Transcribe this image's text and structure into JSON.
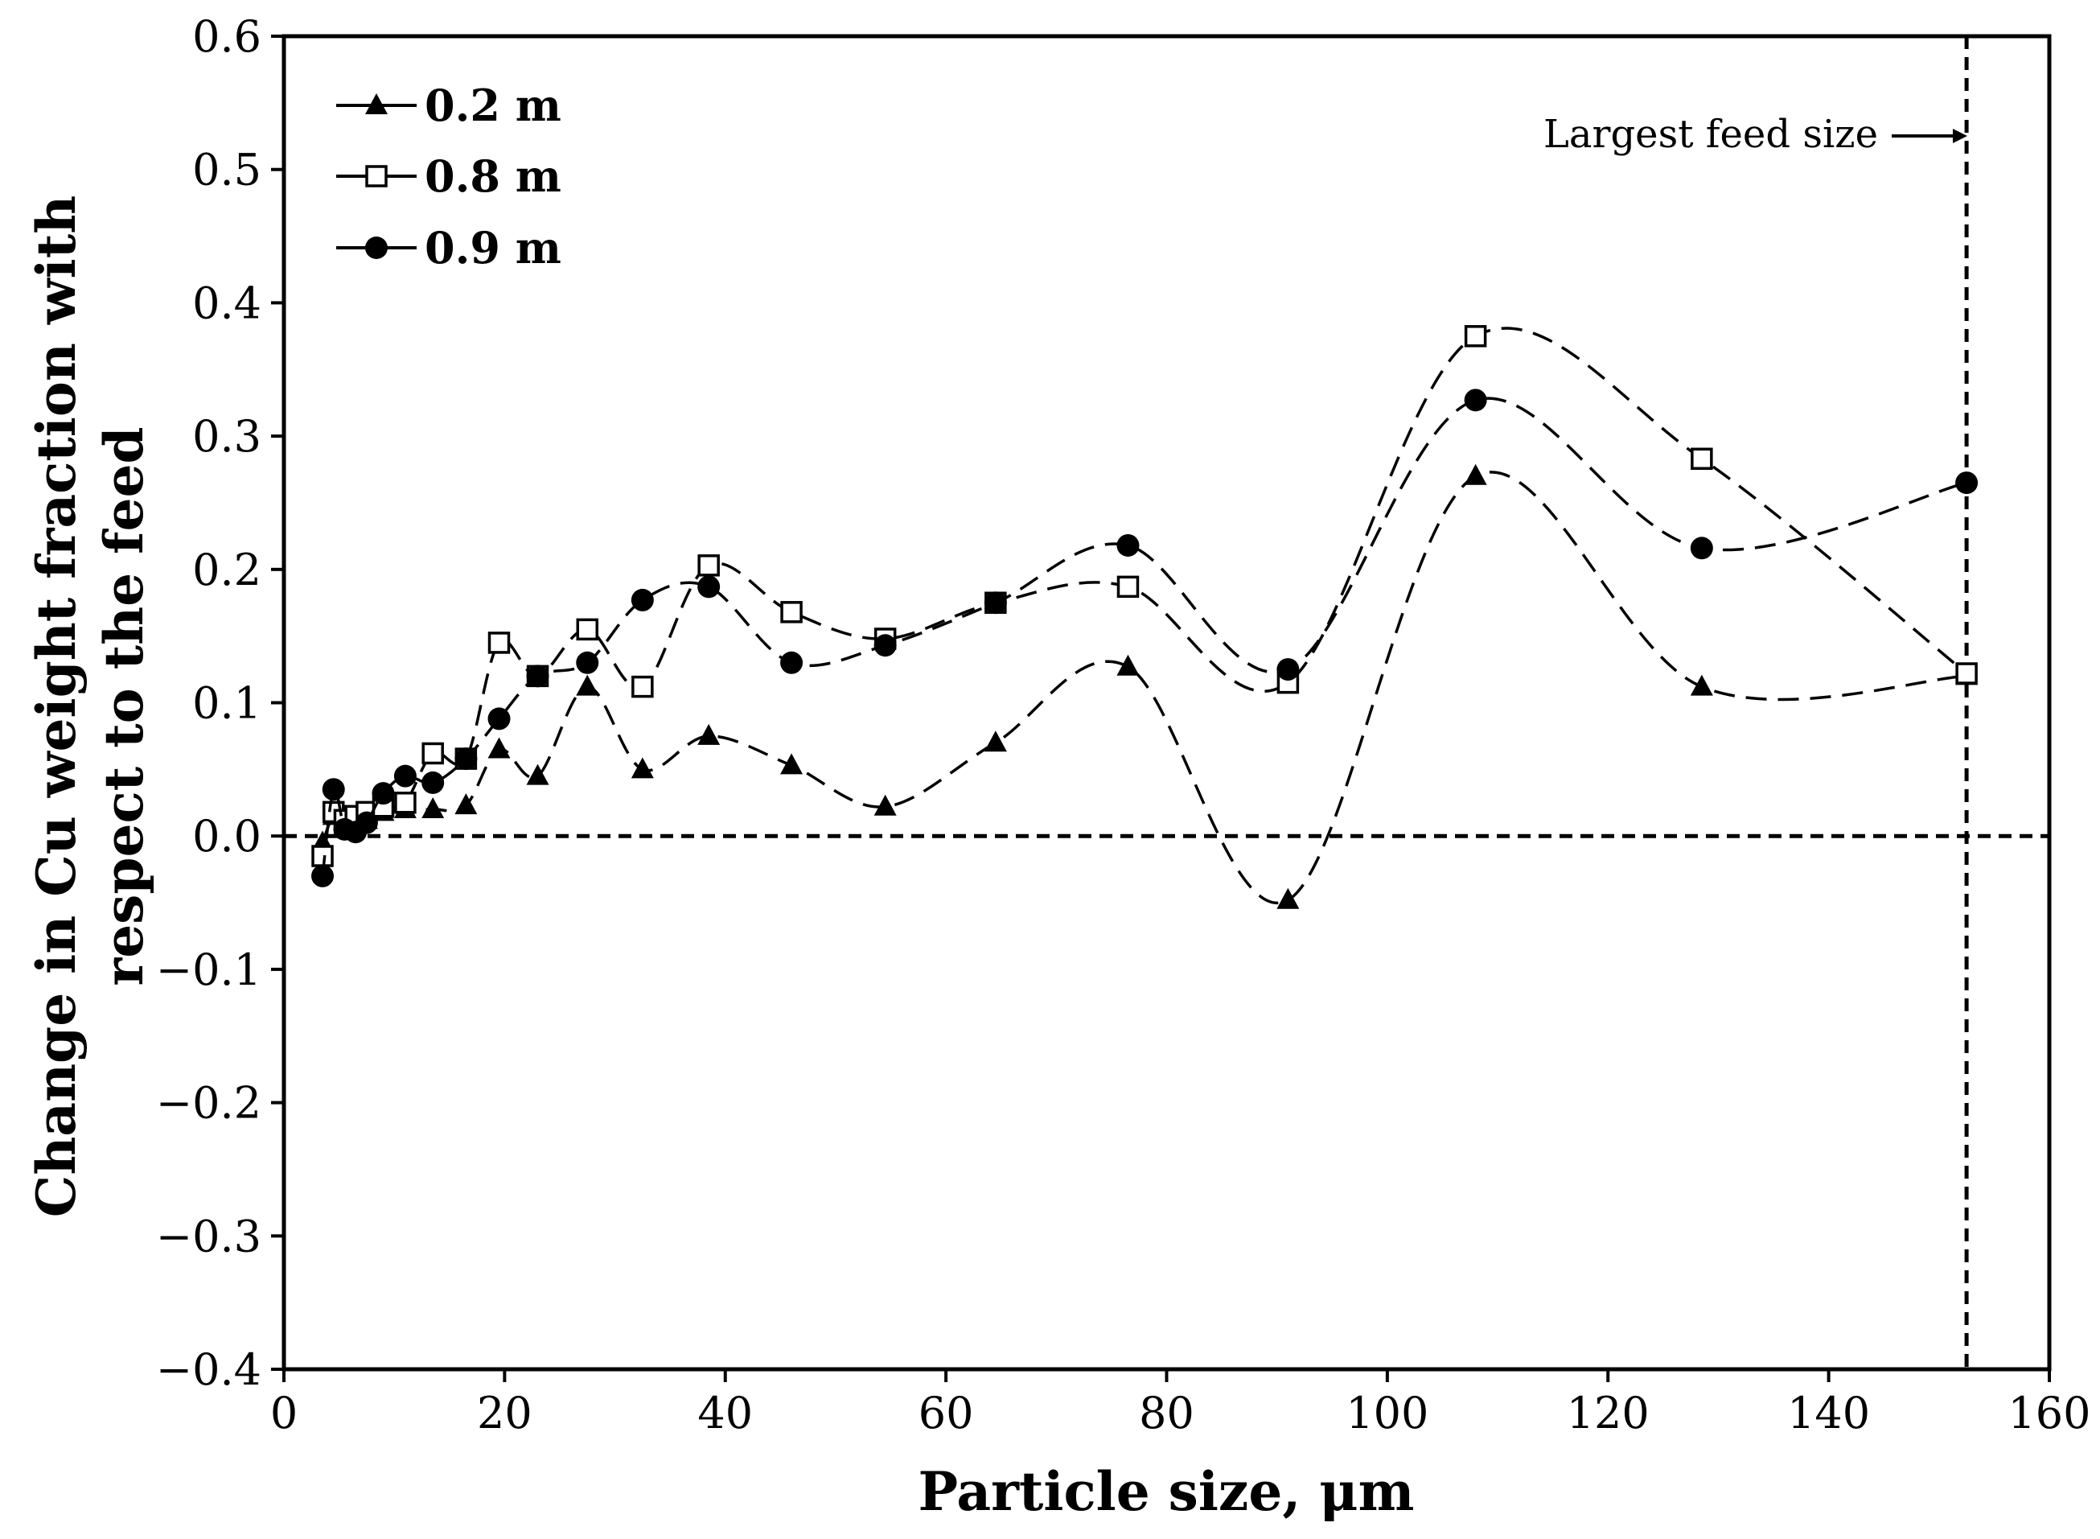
{
  "chart_data": {
    "type": "line",
    "title": "",
    "xlabel": "Particle size, μm",
    "ylabel": "Change in Cu weight fraction with respect to the feed",
    "ylabel_lines": [
      "Change in Cu weight fraction with",
      "respect to the feed"
    ],
    "xlim": [
      0,
      160
    ],
    "ylim": [
      -0.4,
      0.6
    ],
    "xticks": [
      0,
      20,
      40,
      60,
      80,
      100,
      120,
      140,
      160
    ],
    "xtick_labels": [
      "0",
      "20",
      "40",
      "60",
      "80",
      "100",
      "120",
      "140",
      "160"
    ],
    "yticks": [
      -0.4,
      -0.3,
      -0.2,
      -0.1,
      0.0,
      0.1,
      0.2,
      0.3,
      0.4,
      0.5,
      0.6
    ],
    "ytick_labels": [
      "−0.4",
      "−0.3",
      "−0.2",
      "−0.1",
      "0.0",
      "0.1",
      "0.2",
      "0.3",
      "0.4",
      "0.5",
      "0.6"
    ],
    "grid": false,
    "legend_position": "top-left",
    "reference_line_y": 0,
    "largest_feed_size_x": 152.5,
    "annotation": "Largest feed size",
    "series": [
      {
        "name": "0.2 m",
        "marker": "triangle-filled",
        "x": [
          3.5,
          4.5,
          5.5,
          6.5,
          7.5,
          9,
          11,
          13.5,
          16.5,
          19.5,
          23,
          27.5,
          32.5,
          38.5,
          46,
          54.5,
          64.5,
          76.5,
          91,
          108,
          128.5,
          152.5
        ],
        "values": [
          -0.005,
          0.015,
          0.008,
          0.01,
          0.012,
          0.018,
          0.02,
          0.02,
          0.023,
          0.065,
          0.045,
          0.112,
          0.05,
          0.075,
          0.053,
          0.022,
          0.07,
          0.127,
          -0.048,
          0.27,
          0.112,
          0.12
        ]
      },
      {
        "name": "0.8 m",
        "marker": "square-open",
        "x": [
          3.5,
          4.5,
          5.5,
          6.5,
          7.5,
          9,
          11,
          13.5,
          16.5,
          19.5,
          23,
          27.5,
          32.5,
          38.5,
          46,
          54.5,
          64.5,
          76.5,
          91,
          108,
          128.5,
          152.5
        ],
        "values": [
          -0.015,
          0.018,
          0.012,
          0.015,
          0.018,
          0.022,
          0.025,
          0.062,
          0.058,
          0.145,
          0.12,
          0.155,
          0.112,
          0.203,
          0.168,
          0.148,
          0.175,
          0.187,
          0.115,
          0.375,
          0.283,
          0.122
        ]
      },
      {
        "name": "0.9 m",
        "marker": "circle-filled",
        "x": [
          3.5,
          4.5,
          5.5,
          6.5,
          7.5,
          9,
          11,
          13.5,
          16.5,
          19.5,
          23,
          27.5,
          32.5,
          38.5,
          46,
          54.5,
          64.5,
          76.5,
          91,
          108,
          128.5,
          152.5
        ],
        "values": [
          -0.03,
          0.035,
          0.005,
          0.003,
          0.01,
          0.032,
          0.045,
          0.04,
          0.058,
          0.088,
          0.12,
          0.13,
          0.177,
          0.187,
          0.13,
          0.143,
          0.175,
          0.218,
          0.125,
          0.327,
          0.216,
          0.265
        ]
      }
    ]
  }
}
